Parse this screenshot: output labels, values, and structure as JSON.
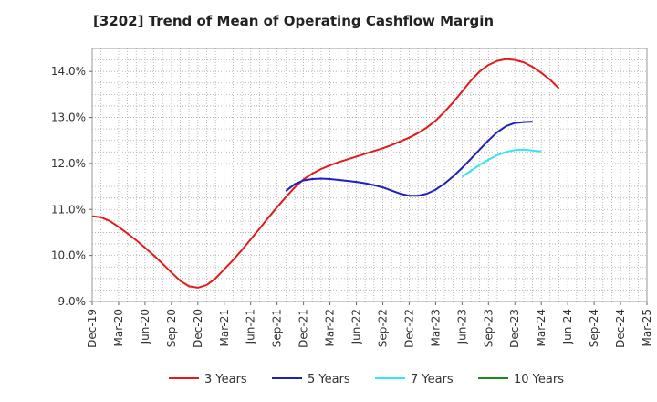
{
  "chart_data": {
    "type": "line",
    "title": "[3202]  Trend of Mean of Operating Cashflow Margin",
    "xlabel": "",
    "ylabel": "",
    "ylim": [
      9.0,
      14.5
    ],
    "yticks": [
      "9.0%",
      "10.0%",
      "11.0%",
      "12.0%",
      "13.0%",
      "14.0%"
    ],
    "ytick_values": [
      9.0,
      10.0,
      11.0,
      12.0,
      13.0,
      14.0
    ],
    "x_ticks": [
      "Dec-19",
      "Mar-20",
      "Jun-20",
      "Sep-20",
      "Dec-20",
      "Mar-21",
      "Jun-21",
      "Sep-21",
      "Dec-21",
      "Mar-22",
      "Jun-22",
      "Sep-22",
      "Dec-22",
      "Mar-23",
      "Jun-23",
      "Sep-23",
      "Dec-23",
      "Mar-24",
      "Jun-24",
      "Sep-24",
      "Dec-24",
      "Mar-25"
    ],
    "grid": true,
    "legend_position": "bottom",
    "series": [
      {
        "name": "3 Years",
        "color": "#e31a1c",
        "points": [
          [
            "Dec-19",
            10.85
          ],
          [
            "Jan-20",
            10.83
          ],
          [
            "Feb-20",
            10.75
          ],
          [
            "Mar-20",
            10.62
          ],
          [
            "Apr-20",
            10.48
          ],
          [
            "May-20",
            10.33
          ],
          [
            "Jun-20",
            10.17
          ],
          [
            "Jul-20",
            10.0
          ],
          [
            "Aug-20",
            9.82
          ],
          [
            "Sep-20",
            9.63
          ],
          [
            "Oct-20",
            9.45
          ],
          [
            "Nov-20",
            9.33
          ],
          [
            "Dec-20",
            9.3
          ],
          [
            "Jan-21",
            9.36
          ],
          [
            "Feb-21",
            9.5
          ],
          [
            "Mar-21",
            9.7
          ],
          [
            "Apr-21",
            9.9
          ],
          [
            "May-21",
            10.12
          ],
          [
            "Jun-21",
            10.35
          ],
          [
            "Jul-21",
            10.58
          ],
          [
            "Aug-21",
            10.82
          ],
          [
            "Sep-21",
            11.05
          ],
          [
            "Oct-21",
            11.27
          ],
          [
            "Nov-21",
            11.48
          ],
          [
            "Dec-21",
            11.65
          ],
          [
            "Jan-22",
            11.78
          ],
          [
            "Feb-22",
            11.88
          ],
          [
            "Mar-22",
            11.96
          ],
          [
            "Apr-22",
            12.03
          ],
          [
            "May-22",
            12.09
          ],
          [
            "Jun-22",
            12.15
          ],
          [
            "Jul-22",
            12.21
          ],
          [
            "Aug-22",
            12.27
          ],
          [
            "Sep-22",
            12.33
          ],
          [
            "Oct-22",
            12.4
          ],
          [
            "Nov-22",
            12.48
          ],
          [
            "Dec-22",
            12.56
          ],
          [
            "Jan-23",
            12.66
          ],
          [
            "Feb-23",
            12.78
          ],
          [
            "Mar-23",
            12.93
          ],
          [
            "Apr-23",
            13.12
          ],
          [
            "May-23",
            13.33
          ],
          [
            "Jun-23",
            13.56
          ],
          [
            "Jul-23",
            13.8
          ],
          [
            "Aug-23",
            14.0
          ],
          [
            "Sep-23",
            14.14
          ],
          [
            "Oct-23",
            14.23
          ],
          [
            "Nov-23",
            14.27
          ],
          [
            "Dec-23",
            14.25
          ],
          [
            "Jan-24",
            14.2
          ],
          [
            "Feb-24",
            14.1
          ],
          [
            "Mar-24",
            13.97
          ],
          [
            "Apr-24",
            13.82
          ],
          [
            "May-24",
            13.63
          ]
        ]
      },
      {
        "name": "5 Years",
        "color": "#1f1fbf",
        "points": [
          [
            "Oct-21",
            11.4
          ],
          [
            "Nov-21",
            11.55
          ],
          [
            "Dec-21",
            11.63
          ],
          [
            "Jan-22",
            11.66
          ],
          [
            "Feb-22",
            11.67
          ],
          [
            "Mar-22",
            11.66
          ],
          [
            "Apr-22",
            11.64
          ],
          [
            "May-22",
            11.62
          ],
          [
            "Jun-22",
            11.6
          ],
          [
            "Jul-22",
            11.57
          ],
          [
            "Aug-22",
            11.53
          ],
          [
            "Sep-22",
            11.48
          ],
          [
            "Oct-22",
            11.41
          ],
          [
            "Nov-22",
            11.34
          ],
          [
            "Dec-22",
            11.3
          ],
          [
            "Jan-23",
            11.3
          ],
          [
            "Feb-23",
            11.34
          ],
          [
            "Mar-23",
            11.43
          ],
          [
            "Apr-23",
            11.56
          ],
          [
            "May-23",
            11.72
          ],
          [
            "Jun-23",
            11.9
          ],
          [
            "Jul-23",
            12.1
          ],
          [
            "Aug-23",
            12.3
          ],
          [
            "Sep-23",
            12.5
          ],
          [
            "Oct-23",
            12.68
          ],
          [
            "Nov-23",
            12.81
          ],
          [
            "Dec-23",
            12.88
          ],
          [
            "Jan-24",
            12.9
          ],
          [
            "Feb-24",
            12.91
          ]
        ]
      },
      {
        "name": "7 Years",
        "color": "#33e6f0",
        "points": [
          [
            "Jun-23",
            11.71
          ],
          [
            "Jul-23",
            11.84
          ],
          [
            "Aug-23",
            11.97
          ],
          [
            "Sep-23",
            12.08
          ],
          [
            "Oct-23",
            12.18
          ],
          [
            "Nov-23",
            12.25
          ],
          [
            "Dec-23",
            12.29
          ],
          [
            "Jan-24",
            12.3
          ],
          [
            "Feb-24",
            12.28
          ],
          [
            "Mar-24",
            12.26
          ]
        ]
      },
      {
        "name": "10 Years",
        "color": "#1a8a1a",
        "points": []
      }
    ]
  }
}
